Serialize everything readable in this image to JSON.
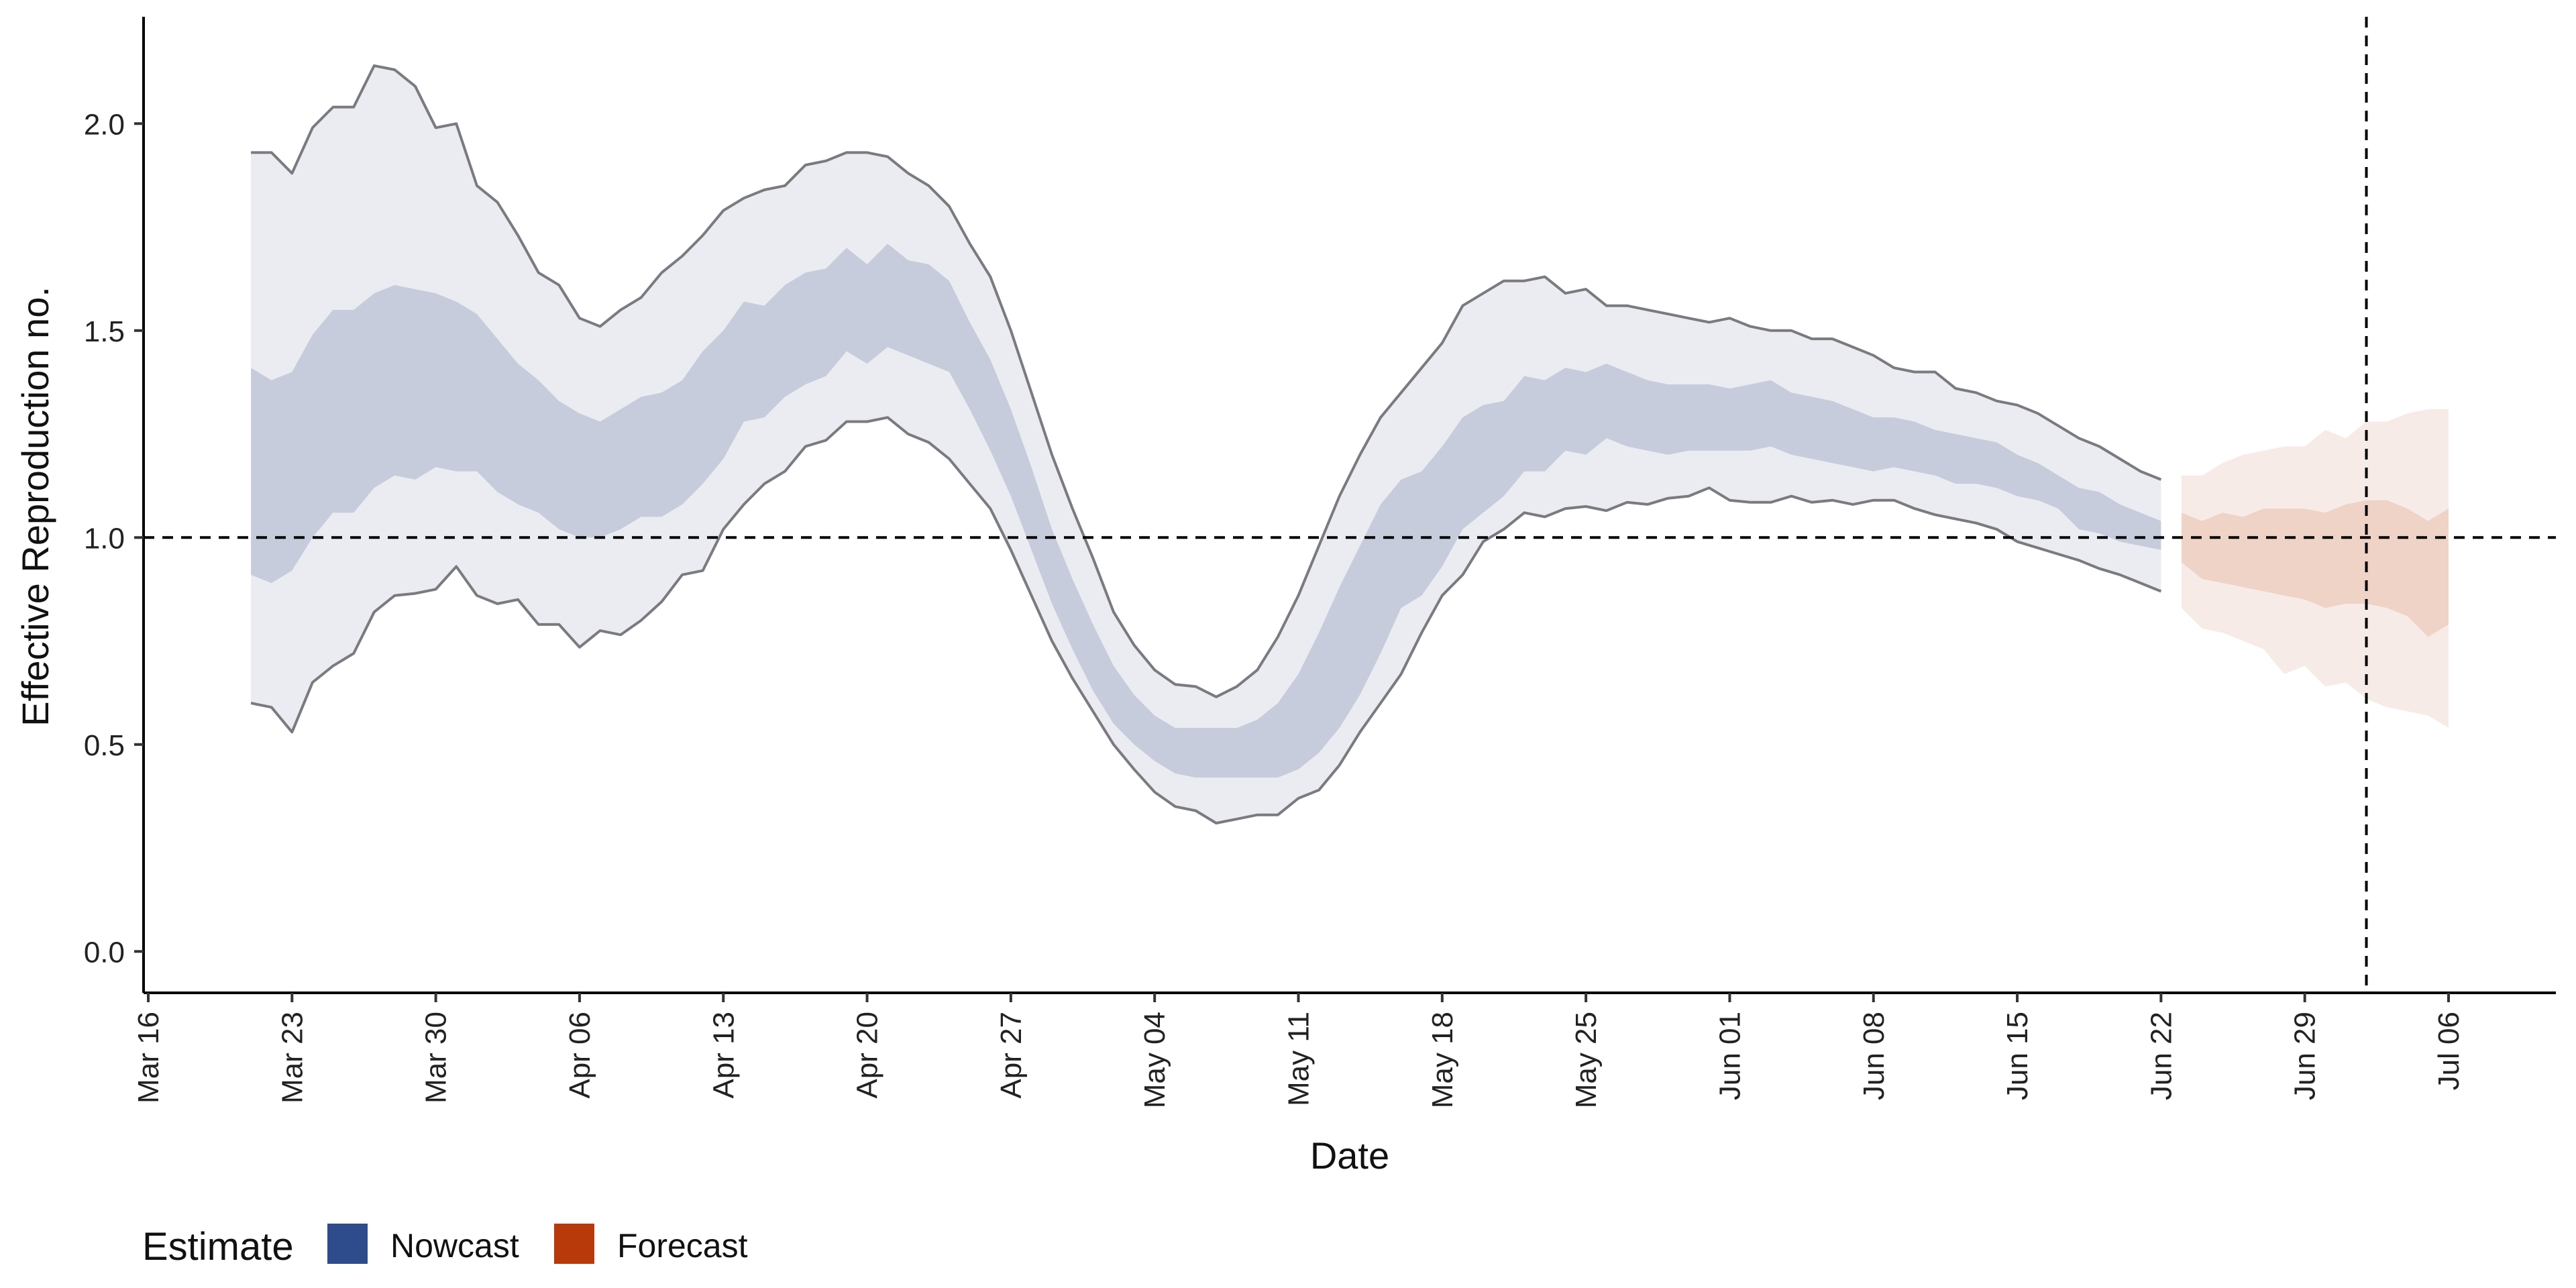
{
  "chart_data": {
    "type": "area",
    "title": "",
    "xlabel": "Date",
    "ylabel": "Effective Reproduction no.",
    "x_ticks": [
      "Mar 16",
      "Mar 23",
      "Mar 30",
      "Apr 06",
      "Apr 13",
      "Apr 20",
      "Apr 27",
      "May 04",
      "May 11",
      "May 18",
      "May 25",
      "Jun 01",
      "Jun 08",
      "Jun 15",
      "Jun 22",
      "Jun 29",
      "Jul 06"
    ],
    "y_ticks": [
      "0.0",
      "0.5",
      "1.0",
      "1.5",
      "2.0"
    ],
    "ylim": [
      -0.1,
      2.25
    ],
    "grid": false,
    "reference_lines": {
      "y": 1.0,
      "x_date": "2020-07-02"
    },
    "legend": {
      "title": "Estimate",
      "position": "bottom-left",
      "entries": [
        {
          "name": "Nowcast",
          "color": "#2e4c8c"
        },
        {
          "name": "Forecast",
          "color": "#b83a0a"
        }
      ]
    },
    "colors": {
      "nowcast_outer": "#ebecf1",
      "nowcast_inner": "#c6ccdc",
      "nowcast_edge": "#7a7a80",
      "forecast_outer": "#f7ebe7",
      "forecast_inner": "#efd3c7"
    },
    "series": [
      {
        "name": "Nowcast",
        "dates": [
          "2020-03-21",
          "2020-03-22",
          "2020-03-23",
          "2020-03-24",
          "2020-03-25",
          "2020-03-26",
          "2020-03-27",
          "2020-03-28",
          "2020-03-29",
          "2020-03-30",
          "2020-03-31",
          "2020-04-01",
          "2020-04-02",
          "2020-04-03",
          "2020-04-04",
          "2020-04-05",
          "2020-04-06",
          "2020-04-07",
          "2020-04-08",
          "2020-04-09",
          "2020-04-10",
          "2020-04-11",
          "2020-04-12",
          "2020-04-13",
          "2020-04-14",
          "2020-04-15",
          "2020-04-16",
          "2020-04-17",
          "2020-04-18",
          "2020-04-19",
          "2020-04-20",
          "2020-04-21",
          "2020-04-22",
          "2020-04-23",
          "2020-04-24",
          "2020-04-25",
          "2020-04-26",
          "2020-04-27",
          "2020-04-28",
          "2020-04-29",
          "2020-04-30",
          "2020-05-01",
          "2020-05-02",
          "2020-05-03",
          "2020-05-04",
          "2020-05-05",
          "2020-05-06",
          "2020-05-07",
          "2020-05-08",
          "2020-05-09",
          "2020-05-10",
          "2020-05-11",
          "2020-05-12",
          "2020-05-13",
          "2020-05-14",
          "2020-05-15",
          "2020-05-16",
          "2020-05-17",
          "2020-05-18",
          "2020-05-19",
          "2020-05-20",
          "2020-05-21",
          "2020-05-22",
          "2020-05-23",
          "2020-05-24",
          "2020-05-25",
          "2020-05-26",
          "2020-05-27",
          "2020-05-28",
          "2020-05-29",
          "2020-05-30",
          "2020-05-31",
          "2020-06-01",
          "2020-06-02",
          "2020-06-03",
          "2020-06-04",
          "2020-06-05",
          "2020-06-06",
          "2020-06-07",
          "2020-06-08",
          "2020-06-09",
          "2020-06-10",
          "2020-06-11",
          "2020-06-12",
          "2020-06-13",
          "2020-06-14",
          "2020-06-15",
          "2020-06-16",
          "2020-06-17",
          "2020-06-18",
          "2020-06-19",
          "2020-06-20",
          "2020-06-21",
          "2020-06-22"
        ],
        "upper90": [
          1.93,
          1.93,
          1.88,
          1.99,
          2.04,
          2.04,
          2.14,
          2.13,
          2.09,
          1.99,
          2.0,
          1.85,
          1.81,
          1.73,
          1.64,
          1.61,
          1.53,
          1.51,
          1.55,
          1.58,
          1.64,
          1.68,
          1.73,
          1.79,
          1.82,
          1.84,
          1.85,
          1.9,
          1.91,
          1.93,
          1.93,
          1.92,
          1.88,
          1.85,
          1.8,
          1.71,
          1.63,
          1.5,
          1.35,
          1.2,
          1.07,
          0.95,
          0.82,
          0.74,
          0.68,
          0.645,
          0.64,
          0.615,
          0.64,
          0.68,
          0.76,
          0.86,
          0.98,
          1.1,
          1.2,
          1.29,
          1.35,
          1.41,
          1.47,
          1.56,
          1.59,
          1.62,
          1.62,
          1.63,
          1.59,
          1.6,
          1.56,
          1.56,
          1.55,
          1.54,
          1.53,
          1.52,
          1.53,
          1.51,
          1.5,
          1.5,
          1.48,
          1.48,
          1.46,
          1.44,
          1.41,
          1.4,
          1.4,
          1.36,
          1.35,
          1.33,
          1.32,
          1.3,
          1.27,
          1.24,
          1.22,
          1.19,
          1.16,
          1.14,
          1.12,
          1.1
        ],
        "upper50": [
          1.41,
          1.38,
          1.4,
          1.49,
          1.55,
          1.55,
          1.59,
          1.61,
          1.6,
          1.59,
          1.57,
          1.54,
          1.48,
          1.42,
          1.38,
          1.33,
          1.3,
          1.28,
          1.31,
          1.34,
          1.35,
          1.38,
          1.45,
          1.5,
          1.57,
          1.56,
          1.61,
          1.64,
          1.65,
          1.7,
          1.66,
          1.71,
          1.67,
          1.66,
          1.62,
          1.52,
          1.43,
          1.31,
          1.17,
          1.02,
          0.9,
          0.79,
          0.69,
          0.62,
          0.57,
          0.54,
          0.54,
          0.54,
          0.54,
          0.56,
          0.6,
          0.67,
          0.77,
          0.88,
          0.98,
          1.08,
          1.14,
          1.16,
          1.22,
          1.29,
          1.32,
          1.33,
          1.39,
          1.38,
          1.41,
          1.4,
          1.42,
          1.4,
          1.38,
          1.37,
          1.37,
          1.37,
          1.36,
          1.37,
          1.38,
          1.35,
          1.34,
          1.33,
          1.31,
          1.29,
          1.29,
          1.28,
          1.26,
          1.25,
          1.24,
          1.23,
          1.2,
          1.18,
          1.15,
          1.12,
          1.11,
          1.08,
          1.06,
          1.04,
          1.03,
          1.01
        ],
        "lower50": [
          0.91,
          0.89,
          0.92,
          1.0,
          1.06,
          1.06,
          1.12,
          1.15,
          1.14,
          1.17,
          1.16,
          1.16,
          1.11,
          1.08,
          1.06,
          1.02,
          1.0,
          1.0,
          1.02,
          1.05,
          1.05,
          1.08,
          1.13,
          1.19,
          1.28,
          1.29,
          1.34,
          1.37,
          1.39,
          1.45,
          1.42,
          1.46,
          1.44,
          1.42,
          1.4,
          1.31,
          1.21,
          1.1,
          0.97,
          0.84,
          0.73,
          0.63,
          0.55,
          0.5,
          0.46,
          0.43,
          0.42,
          0.42,
          0.42,
          0.42,
          0.42,
          0.44,
          0.48,
          0.54,
          0.62,
          0.72,
          0.83,
          0.86,
          0.93,
          1.02,
          1.06,
          1.1,
          1.16,
          1.16,
          1.21,
          1.2,
          1.24,
          1.22,
          1.21,
          1.2,
          1.21,
          1.21,
          1.21,
          1.21,
          1.22,
          1.2,
          1.19,
          1.18,
          1.17,
          1.16,
          1.17,
          1.16,
          1.15,
          1.13,
          1.13,
          1.12,
          1.1,
          1.09,
          1.07,
          1.02,
          1.01,
          0.99,
          0.98,
          0.97,
          0.96,
          0.94
        ],
        "lower90": [
          0.6,
          0.59,
          0.53,
          0.65,
          0.69,
          0.72,
          0.82,
          0.86,
          0.865,
          0.875,
          0.93,
          0.86,
          0.84,
          0.85,
          0.79,
          0.79,
          0.735,
          0.775,
          0.765,
          0.8,
          0.845,
          0.91,
          0.92,
          1.02,
          1.08,
          1.13,
          1.16,
          1.22,
          1.235,
          1.28,
          1.28,
          1.29,
          1.25,
          1.23,
          1.19,
          1.13,
          1.07,
          0.97,
          0.86,
          0.75,
          0.66,
          0.58,
          0.5,
          0.44,
          0.385,
          0.35,
          0.34,
          0.31,
          0.32,
          0.33,
          0.33,
          0.37,
          0.39,
          0.45,
          0.53,
          0.6,
          0.67,
          0.77,
          0.86,
          0.91,
          0.99,
          1.02,
          1.06,
          1.05,
          1.07,
          1.075,
          1.065,
          1.085,
          1.08,
          1.095,
          1.1,
          1.12,
          1.09,
          1.085,
          1.085,
          1.1,
          1.085,
          1.09,
          1.08,
          1.09,
          1.09,
          1.07,
          1.055,
          1.045,
          1.035,
          1.02,
          0.99,
          0.975,
          0.96,
          0.945,
          0.925,
          0.91,
          0.89,
          0.87,
          0.855,
          0.83
        ]
      },
      {
        "name": "Forecast",
        "dates": [
          "2020-06-23",
          "2020-06-24",
          "2020-06-25",
          "2020-06-26",
          "2020-06-27",
          "2020-06-28",
          "2020-06-29",
          "2020-06-30",
          "2020-07-01",
          "2020-07-02",
          "2020-07-03",
          "2020-07-04",
          "2020-07-05",
          "2020-07-06"
        ],
        "upper90": [
          1.15,
          1.15,
          1.18,
          1.2,
          1.21,
          1.22,
          1.22,
          1.26,
          1.24,
          1.28,
          1.28,
          1.3,
          1.31,
          1.31
        ],
        "upper50": [
          1.06,
          1.04,
          1.06,
          1.05,
          1.07,
          1.07,
          1.07,
          1.06,
          1.08,
          1.09,
          1.09,
          1.07,
          1.04,
          1.07
        ],
        "lower50": [
          0.94,
          0.9,
          0.89,
          0.88,
          0.87,
          0.86,
          0.85,
          0.83,
          0.84,
          0.84,
          0.83,
          0.81,
          0.76,
          0.79
        ],
        "lower90": [
          0.83,
          0.78,
          0.77,
          0.75,
          0.73,
          0.67,
          0.69,
          0.64,
          0.65,
          0.61,
          0.59,
          0.58,
          0.57,
          0.54
        ]
      }
    ]
  }
}
